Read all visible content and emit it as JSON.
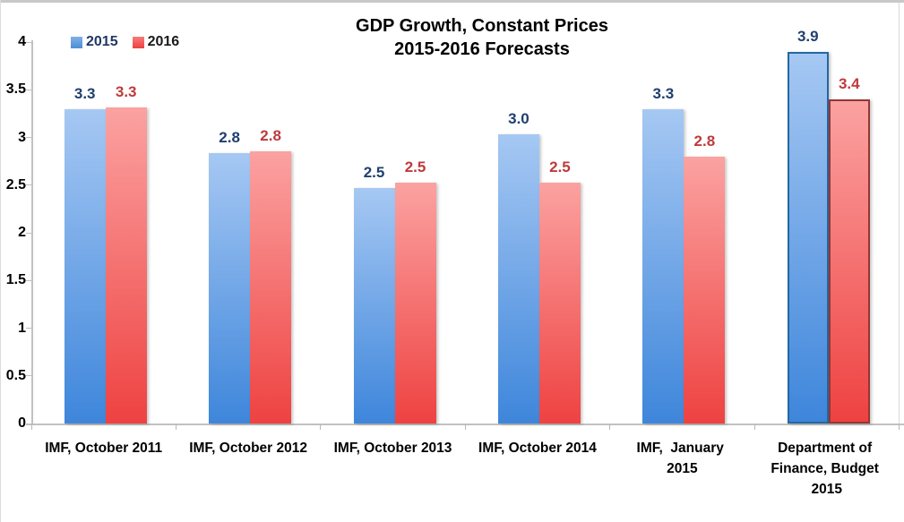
{
  "title": {
    "line1": "GDP Growth, Constant Prices",
    "line2": "2015-2016 Forecasts"
  },
  "legend": [
    {
      "label": "2015",
      "swatch_top": "#7FB0E8",
      "swatch_bottom": "#4D8ED3",
      "text_color": "#1F3864"
    },
    {
      "label": "2016",
      "swatch_top": "#F87C7A",
      "swatch_bottom": "#EC4140",
      "text_color": "#1A1A1A"
    }
  ],
  "chart_data": {
    "type": "bar",
    "title": "GDP Growth, Constant Prices 2015-2016 Forecasts",
    "categories": [
      "IMF, October 2011",
      "IMF, October 2012",
      "IMF, October 2013",
      "IMF, October 2014",
      "IMF,  January 2015",
      "Department of Finance, Budget 2015"
    ],
    "category_labels_display": [
      "IMF, October 2011",
      "IMF, October 2012",
      "IMF, October 2013",
      "IMF, October 2014",
      "IMF,  January \n2015",
      "Department of \nFinance, Budget \n2015"
    ],
    "series": [
      {
        "name": "2015",
        "values": [
          3.3,
          2.8,
          2.5,
          3.0,
          3.3,
          3.9
        ],
        "value_labels": [
          "3.3",
          "2.8",
          "2.5",
          "3.0",
          "3.3",
          "3.9"
        ],
        "bar_heights": [
          3.3,
          2.84,
          2.47,
          3.03,
          3.3,
          3.9
        ],
        "fill_top": "#A6C8F3",
        "fill_bottom": "#3E86DB",
        "border_color": "#2368A2",
        "label_color": "#1F3F6E"
      },
      {
        "name": "2016",
        "values": [
          3.3,
          2.8,
          2.5,
          2.5,
          2.8,
          3.4
        ],
        "value_labels": [
          "3.3",
          "2.8",
          "2.5",
          "2.5",
          "2.8",
          "3.4"
        ],
        "bar_heights": [
          3.31,
          2.85,
          2.53,
          2.53,
          2.8,
          3.4
        ],
        "fill_top": "#FBA2A1",
        "fill_bottom": "#EE4241",
        "border_color": "#943634",
        "label_color": "#BE3A3C"
      }
    ],
    "ylim": [
      0,
      4
    ],
    "ytick_labels": [
      "0",
      "0.5",
      "1",
      "1.5",
      "2",
      "2.5",
      "3",
      "3.5",
      "4"
    ],
    "grid": false,
    "legend_position": "top-left",
    "bordered_category": "Department of Finance, Budget 2015",
    "axis_color": "#BFBFBF",
    "text_color": "#000000"
  }
}
